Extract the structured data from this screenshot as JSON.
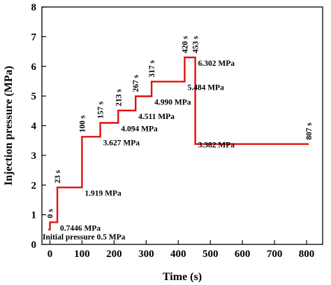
{
  "chart_data": {
    "type": "line",
    "xlabel": "Time (s)",
    "ylabel": "Injection pressure (MPa)",
    "xlim": [
      -25,
      850
    ],
    "ylim": [
      0,
      8
    ],
    "xticks": [
      0,
      100,
      200,
      300,
      400,
      500,
      600,
      700,
      800
    ],
    "yticks": [
      0,
      1,
      2,
      3,
      4,
      5,
      6,
      7,
      8
    ],
    "grid": false,
    "line_color": "#e01010",
    "series": [
      {
        "x": [
          -5,
          0,
          0,
          23,
          23,
          100,
          100,
          157,
          157,
          213,
          213,
          267,
          267,
          317,
          317,
          420,
          420,
          453,
          453,
          807
        ],
        "y": [
          0.5,
          0.5,
          0.7446,
          0.7446,
          1.919,
          1.919,
          3.627,
          3.627,
          4.094,
          4.094,
          4.511,
          4.511,
          4.99,
          4.99,
          5.484,
          5.484,
          6.302,
          6.302,
          3.382,
          3.382
        ]
      }
    ],
    "time_annotations": [
      {
        "text": "0 s",
        "x": 0,
        "y": 0.7446
      },
      {
        "text": "23 s",
        "x": 23,
        "y": 1.919
      },
      {
        "text": "100 s",
        "x": 100,
        "y": 3.627
      },
      {
        "text": "157 s",
        "x": 157,
        "y": 4.094
      },
      {
        "text": "213 s",
        "x": 213,
        "y": 4.511
      },
      {
        "text": "267 s",
        "x": 267,
        "y": 4.99
      },
      {
        "text": "317 s",
        "x": 317,
        "y": 5.484
      },
      {
        "text": "420 s",
        "x": 420,
        "y": 6.302
      },
      {
        "text": "453 s",
        "x": 453,
        "y": 6.302
      },
      {
        "text": "807 s",
        "x": 807,
        "y": 3.382
      }
    ],
    "pressure_annotations": [
      {
        "text": "Initial pressure 0.5 MPa",
        "x": 0,
        "y": 0.5
      },
      {
        "text": "0.7446 MPa",
        "x": 23,
        "y": 0.7446
      },
      {
        "text": "1.919 MPa",
        "x": 100,
        "y": 1.919
      },
      {
        "text": "3.627 MPa",
        "x": 157,
        "y": 3.627
      },
      {
        "text": "4.094 MPa",
        "x": 213,
        "y": 4.094
      },
      {
        "text": "4.511 MPa",
        "x": 267,
        "y": 4.511
      },
      {
        "text": "4.990 MPa",
        "x": 317,
        "y": 4.99
      },
      {
        "text": "5.484 MPa",
        "x": 420,
        "y": 5.484
      },
      {
        "text": "6.302 MPa",
        "x": 453,
        "y": 6.302
      },
      {
        "text": "3.382 MPa",
        "x": 453,
        "y": 3.382
      }
    ]
  }
}
